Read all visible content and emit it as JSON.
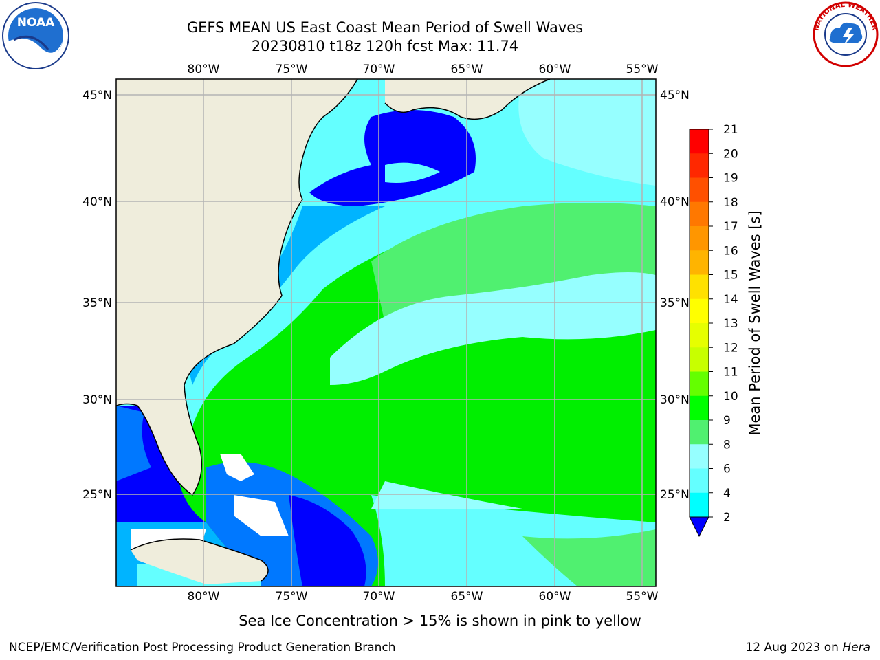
{
  "header": {
    "title_line1": "GEFS MEAN US East Coast Mean Period of Swell Waves",
    "title_line2": "20230810 t18z 120h fcst   Max: 11.74"
  },
  "logos": {
    "left": "noaa-logo",
    "left_text": "NOAA",
    "right": "national-weather-service-logo",
    "right_text": "NATIONAL WEATHER SERVICE"
  },
  "map": {
    "lon_ticks": [
      "80°W",
      "75°W",
      "70°W",
      "65°W",
      "60°W",
      "55°W"
    ],
    "lat_ticks": [
      "45°N",
      "40°N",
      "35°N",
      "30°N",
      "25°N"
    ],
    "land_color": "#efeddc",
    "grid_color": "#b3b3b3"
  },
  "colorbar": {
    "label": "Mean Period of Swell Waves [s]",
    "ticks": [
      "21",
      "20",
      "19",
      "18",
      "17",
      "16",
      "15",
      "14",
      "13",
      "12",
      "11",
      "10",
      "9",
      "8",
      "6",
      "4",
      "2"
    ],
    "colors_top_to_bottom": [
      "#ff0000",
      "#ff2800",
      "#ff5000",
      "#ff7800",
      "#ff9600",
      "#ffb400",
      "#ffe100",
      "#ffff00",
      "#e6ff00",
      "#c8ff00",
      "#64ff00",
      "#00ff00",
      "#50f070",
      "#96ffff",
      "#64ffff",
      "#00ffff",
      "#00b4ff",
      "#0078ff"
    ],
    "extend_color": "#0000ff"
  },
  "notes": {
    "ice": "Sea Ice Concentration > 15% is shown in pink to yellow"
  },
  "footer": {
    "left": "NCEP/EMC/Verification Post Processing Product Generation Branch",
    "right_date": "12 Aug 2023 on ",
    "right_machine": "Hera"
  }
}
